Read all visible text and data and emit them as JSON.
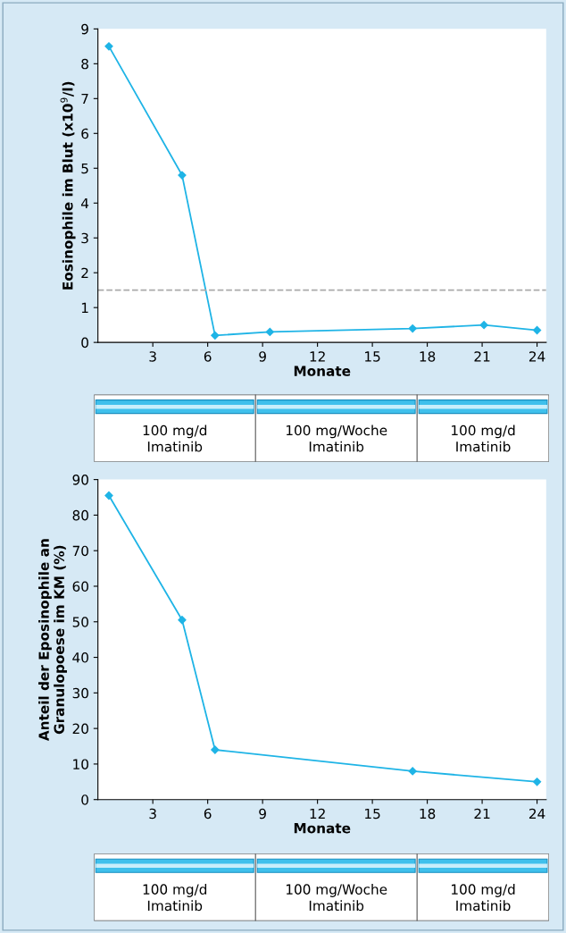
{
  "chart_data": [
    {
      "type": "line",
      "ylabel": "Eosinophile im Blut (x10$^{9}$/l)",
      "xlabel": "Monate",
      "x": [
        0.6,
        4.6,
        6.4,
        9.4,
        17.2,
        21.1,
        24.0
      ],
      "series": [
        {
          "color": "#1fb4e6",
          "values": [
            8.5,
            4.8,
            0.2,
            0.3,
            0.4,
            0.5,
            0.35
          ]
        }
      ],
      "xlim": [
        0,
        24.5
      ],
      "xticks": [
        3,
        6,
        9,
        12,
        15,
        18,
        21,
        24
      ],
      "ylim": [
        0,
        9
      ],
      "yticks": [
        0,
        1,
        2,
        3,
        4,
        5,
        6,
        7,
        8,
        9
      ],
      "ref_lines": [
        {
          "axis": "y",
          "value": 1.5,
          "color": "#aaaaaa",
          "line_style": "dashed"
        }
      ],
      "marker": "diamond",
      "line_style": "solid",
      "grid": false,
      "legend": false,
      "annotations": [
        "100 mg/d\nImatinib",
        "100 mg/Woche\nImatinib",
        "100 mg/d\nImatinib"
      ]
    },
    {
      "type": "line",
      "ylabel": "Anteil der Eposinophile an\nGranulopoese im KM (%)",
      "xlabel": "Monate",
      "x": [
        0.6,
        4.6,
        6.4,
        17.2,
        24.0
      ],
      "series": [
        {
          "color": "#1fb4e6",
          "values": [
            85.5,
            50.5,
            14,
            8,
            5
          ]
        }
      ],
      "xlim": [
        0,
        24.5
      ],
      "xticks": [
        3,
        6,
        9,
        12,
        15,
        18,
        21,
        24
      ],
      "ylim": [
        0,
        90
      ],
      "yticks": [
        0,
        10,
        20,
        30,
        40,
        50,
        60,
        70,
        80,
        90
      ],
      "marker": "diamond",
      "line_style": "solid",
      "grid": false,
      "legend": false,
      "annotations": [
        "100 mg/d\nImatinib",
        "100 mg/Woche\nImatinib",
        "100 mg/d\nImatinib"
      ]
    }
  ]
}
